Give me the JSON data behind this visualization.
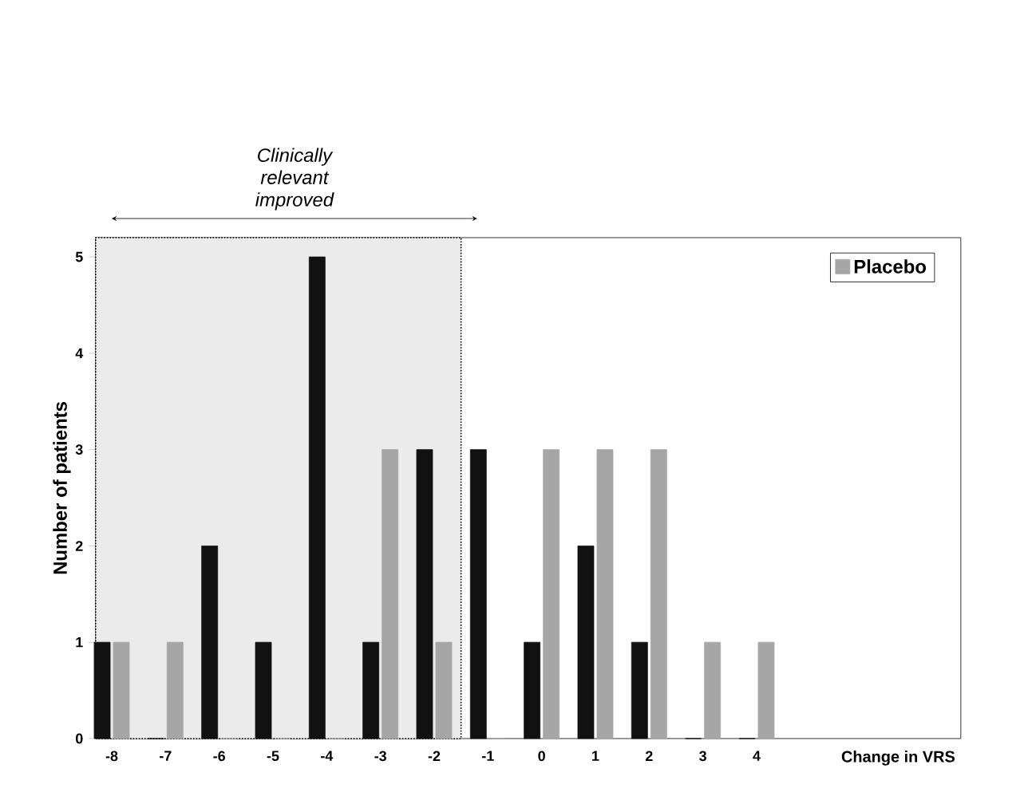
{
  "chart_data": {
    "type": "bar",
    "xlabel": "Change in VRS",
    "ylabel": "Number of patients",
    "categories": [
      "-8",
      "-7",
      "-6",
      "-5",
      "-4",
      "-3",
      "-2",
      "-1",
      "0",
      "1",
      "2",
      "3",
      "4"
    ],
    "series": [
      {
        "color": "#111111",
        "values": [
          1,
          0,
          2,
          1,
          5,
          1,
          3,
          3,
          1,
          2,
          1,
          0,
          0
        ]
      },
      {
        "name": "Placebo",
        "color": "#a6a6a6",
        "values": [
          1,
          1,
          0,
          0,
          0,
          3,
          1,
          0,
          3,
          3,
          3,
          1,
          1
        ]
      }
    ],
    "ylim": [
      0,
      5.2
    ],
    "yticks": [
      0,
      1,
      2,
      3,
      4,
      5
    ],
    "grid": false,
    "legend": "top right",
    "bands": [
      {
        "axis": "x",
        "from": "-8",
        "to": "-2",
        "label": "Clinically relevant improved",
        "color": "#ebebeb"
      }
    ]
  }
}
